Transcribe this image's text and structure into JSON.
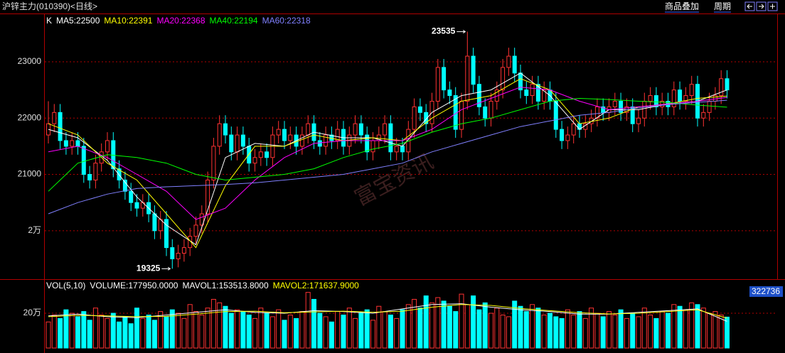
{
  "header": {
    "title": "沪锌主力(010390)<日线>",
    "buttons": [
      "商品叠加",
      "周期"
    ],
    "watermark": "富宝资讯"
  },
  "chart_data": [
    {
      "type": "candlestick",
      "title": "K",
      "up_color": "#ff3232",
      "down_color": "#00ffff",
      "grid": true,
      "ylim": [
        19140,
        23845
      ],
      "yticks": [
        23000,
        22000,
        21000,
        {
          "value": 20000,
          "label": "2万"
        }
      ],
      "open": [
        21700,
        21900,
        22100,
        21600,
        21500,
        21600,
        21500,
        21000,
        20900,
        21200,
        21400,
        21600,
        21100,
        20900,
        20700,
        20500,
        20400,
        20500,
        20300,
        20000,
        20200,
        19700,
        19500,
        19600,
        19700,
        19900,
        20100,
        20300,
        20900,
        21500,
        21900,
        21700,
        21400,
        21700,
        21500,
        21200,
        21300,
        21400,
        21300,
        21700,
        21800,
        21600,
        21700,
        21500,
        21700,
        21900,
        21600,
        21500,
        21700,
        21600,
        21800,
        21500,
        21700,
        21900,
        21700,
        21400,
        21600,
        21700,
        21900,
        21400,
        21500,
        21400,
        21800,
        22200,
        22100,
        21900,
        22300,
        22900,
        22500,
        22400,
        21800,
        22300,
        23100,
        22600,
        22200,
        22000,
        22300,
        22500,
        22900,
        23100,
        22800,
        22500,
        22400,
        22600,
        22300,
        22500,
        22300,
        21800,
        21600,
        21700,
        21900,
        21800,
        21900,
        22000,
        22200,
        22100,
        22200,
        22300,
        22100,
        22200,
        21900,
        22000,
        22300,
        22400,
        22200,
        22300,
        22200,
        22500,
        22300,
        22400,
        22600,
        22000,
        22100,
        22300,
        22400,
        22700
      ],
      "high": [
        22300,
        22250,
        22250,
        21750,
        21750,
        21750,
        21650,
        21150,
        21350,
        21550,
        21750,
        21750,
        21250,
        21050,
        20850,
        20650,
        20650,
        20650,
        20450,
        20350,
        20350,
        19850,
        19750,
        19850,
        20050,
        20250,
        20450,
        21050,
        21650,
        22050,
        22050,
        21850,
        21850,
        21850,
        21650,
        21450,
        21550,
        21550,
        21850,
        21950,
        21950,
        21850,
        21850,
        21850,
        22050,
        22050,
        21750,
        21850,
        21850,
        21950,
        21950,
        21850,
        22050,
        22050,
        21850,
        21750,
        21850,
        22050,
        22050,
        21650,
        21650,
        21950,
        22350,
        22350,
        22250,
        22450,
        23050,
        23050,
        22650,
        22550,
        22450,
        23535,
        23250,
        22750,
        22350,
        22450,
        22650,
        23050,
        23250,
        23250,
        22950,
        22650,
        22750,
        22750,
        22650,
        22650,
        22450,
        21950,
        21850,
        22050,
        22050,
        22050,
        22150,
        22350,
        22350,
        22350,
        22450,
        22450,
        22350,
        22350,
        22150,
        22450,
        22550,
        22550,
        22450,
        22450,
        22650,
        22650,
        22550,
        22750,
        22750,
        22250,
        22450,
        22550,
        22850,
        22850
      ],
      "low": [
        21550,
        21750,
        21450,
        21350,
        21350,
        21350,
        20850,
        20750,
        20750,
        21050,
        21250,
        20950,
        20750,
        20550,
        20350,
        20250,
        20250,
        20150,
        19850,
        19850,
        19550,
        19325,
        19350,
        19450,
        19550,
        19750,
        19950,
        20150,
        20750,
        21350,
        21550,
        21250,
        21250,
        21350,
        21050,
        21050,
        21150,
        21150,
        21150,
        21550,
        21450,
        21450,
        21350,
        21350,
        21550,
        21450,
        21350,
        21350,
        21450,
        21450,
        21350,
        21350,
        21550,
        21550,
        21250,
        21250,
        21450,
        21550,
        21250,
        21250,
        21250,
        21250,
        21650,
        21950,
        21750,
        21750,
        22150,
        22350,
        22250,
        21650,
        21650,
        22150,
        22450,
        22050,
        21850,
        21850,
        22150,
        22350,
        22750,
        22650,
        22350,
        22250,
        22250,
        22150,
        22150,
        22150,
        21650,
        21450,
        21450,
        21550,
        21650,
        21650,
        21750,
        21850,
        21950,
        21950,
        22050,
        21950,
        21950,
        21750,
        21750,
        21850,
        22150,
        22050,
        22050,
        22050,
        22050,
        22150,
        22150,
        22250,
        21850,
        21850,
        21950,
        22150,
        22250,
        22350
      ],
      "close": [
        21900,
        22100,
        21600,
        21500,
        21600,
        21500,
        21000,
        20900,
        21200,
        21400,
        21600,
        21100,
        20900,
        20700,
        20500,
        20400,
        20500,
        20300,
        20000,
        20200,
        19700,
        19500,
        19600,
        19700,
        19900,
        20100,
        20300,
        20900,
        21500,
        21900,
        21700,
        21400,
        21700,
        21500,
        21200,
        21300,
        21400,
        21300,
        21700,
        21800,
        21600,
        21700,
        21500,
        21700,
        21900,
        21600,
        21500,
        21700,
        21600,
        21800,
        21500,
        21700,
        21900,
        21700,
        21400,
        21600,
        21700,
        21900,
        21400,
        21500,
        21400,
        21800,
        22200,
        22100,
        21900,
        22300,
        22900,
        22500,
        22400,
        21800,
        22300,
        23100,
        22600,
        22200,
        22000,
        22300,
        22500,
        22900,
        23100,
        22800,
        22500,
        22400,
        22600,
        22300,
        22500,
        22300,
        21800,
        21600,
        21700,
        21900,
        21800,
        21900,
        22000,
        22200,
        22100,
        22200,
        22300,
        22100,
        22200,
        21900,
        22000,
        22300,
        22400,
        22200,
        22300,
        22200,
        22500,
        22300,
        22400,
        22600,
        22000,
        22100,
        22300,
        22400,
        22700,
        22500
      ],
      "annotations": [
        {
          "index": 71,
          "field": "high"
        },
        {
          "index": 21,
          "field": "low"
        }
      ],
      "series": [
        {
          "name": "MA5:22500",
          "color": "#ffffff",
          "x": [
            0,
            5,
            10,
            15,
            20,
            25,
            30,
            35,
            40,
            45,
            50,
            55,
            60,
            65,
            70,
            75,
            80,
            85,
            90,
            95,
            100,
            105,
            110,
            115
          ],
          "values": [
            21800,
            21650,
            21250,
            20600,
            20100,
            19750,
            21300,
            21550,
            21500,
            21750,
            21650,
            21650,
            21500,
            22100,
            22400,
            22500,
            22800,
            22400,
            21800,
            22150,
            22150,
            22250,
            22300,
            22500
          ]
        },
        {
          "name": "MA10:22391",
          "color": "#ffff00",
          "x": [
            0,
            5,
            10,
            15,
            20,
            25,
            30,
            35,
            40,
            45,
            50,
            55,
            60,
            65,
            70,
            75,
            80,
            85,
            90,
            95,
            100,
            105,
            110,
            115
          ],
          "values": [
            21900,
            21700,
            21200,
            20900,
            20300,
            19700,
            20800,
            21500,
            21500,
            21700,
            21600,
            21650,
            21600,
            22000,
            22300,
            22400,
            22700,
            22500,
            21900,
            22000,
            22200,
            22250,
            22350,
            22391
          ]
        },
        {
          "name": "MA20:22368",
          "color": "#ff00ff",
          "x": [
            0,
            5,
            10,
            15,
            20,
            25,
            30,
            35,
            40,
            45,
            50,
            55,
            60,
            65,
            70,
            75,
            80,
            85,
            90,
            95,
            100,
            105,
            110,
            115
          ],
          "values": [
            21400,
            21500,
            21300,
            21000,
            20700,
            20200,
            20400,
            20900,
            21300,
            21550,
            21600,
            21600,
            21600,
            21800,
            22150,
            22350,
            22550,
            22500,
            22300,
            22150,
            22200,
            22250,
            22300,
            22368
          ]
        },
        {
          "name": "MA40:22194",
          "color": "#00ff00",
          "x": [
            0,
            5,
            10,
            15,
            20,
            25,
            30,
            35,
            40,
            45,
            50,
            55,
            60,
            65,
            70,
            75,
            80,
            85,
            90,
            95,
            100,
            105,
            110,
            115
          ],
          "values": [
            20700,
            21200,
            21350,
            21300,
            21200,
            21000,
            20900,
            20950,
            21000,
            21100,
            21300,
            21450,
            21550,
            21750,
            21900,
            22000,
            22150,
            22300,
            22350,
            22330,
            22300,
            22280,
            22230,
            22194
          ]
        },
        {
          "name": "MA60:22318",
          "color": "#8080ff",
          "x": [
            0,
            5,
            10,
            15,
            20,
            25,
            30,
            35,
            40,
            45,
            50,
            55,
            60,
            65,
            70,
            75,
            80,
            85,
            90,
            95,
            100,
            105,
            110,
            115
          ],
          "values": [
            20300,
            20500,
            20650,
            20750,
            20780,
            20800,
            20820,
            20850,
            20900,
            20950,
            21000,
            21100,
            21200,
            21400,
            21550,
            21700,
            21850,
            21950,
            22050,
            22100,
            22180,
            22240,
            22280,
            22318
          ]
        }
      ]
    },
    {
      "type": "bar",
      "title": "VOL(5,10)",
      "ylim": [
        0,
        388000
      ],
      "yticks": [
        {
          "value": 200000,
          "label": "20万"
        },
        322736
      ],
      "series": [
        {
          "name": "VOLUME:177950.0000",
          "color": "#ffffff",
          "values": [
            150000,
            190000,
            170000,
            220000,
            200000,
            180000,
            210000,
            160000,
            230000,
            190000,
            170000,
            200000,
            150000,
            180000,
            140000,
            230000,
            170000,
            190000,
            160000,
            210000,
            180000,
            220000,
            200000,
            170000,
            250000,
            210000,
            190000,
            230000,
            280000,
            260000,
            240000,
            200000,
            220000,
            210000,
            190000,
            170000,
            230000,
            200000,
            180000,
            220000,
            160000,
            190000,
            170000,
            210000,
            320000,
            280000,
            200000,
            180000,
            150000,
            210000,
            190000,
            230000,
            170000,
            200000,
            220000,
            160000,
            240000,
            210000,
            190000,
            170000,
            220000,
            250000,
            280000,
            230000,
            300000,
            260000,
            290000,
            270000,
            240000,
            210000,
            310000,
            250000,
            300000,
            220000,
            260000,
            200000,
            230000,
            190000,
            180000,
            270000,
            240000,
            210000,
            250000,
            230000,
            190000,
            200000,
            180000,
            170000,
            220000,
            190000,
            210000,
            170000,
            230000,
            200000,
            180000,
            210000,
            190000,
            220000,
            170000,
            200000,
            180000,
            230000,
            190000,
            170000,
            210000,
            200000,
            250000,
            240000,
            220000,
            260000,
            250000,
            230000,
            200000,
            210000,
            190000,
            177950
          ]
        },
        {
          "name": "MAVOL1:153513.8000",
          "color": "#ffffff",
          "x": [
            0,
            5,
            10,
            15,
            20,
            25,
            30,
            35,
            40,
            45,
            50,
            55,
            60,
            65,
            70,
            75,
            80,
            85,
            90,
            95,
            100,
            105,
            110,
            115
          ],
          "values": [
            185000,
            195000,
            180000,
            175000,
            190000,
            205000,
            220000,
            205000,
            200000,
            215000,
            210000,
            200000,
            225000,
            250000,
            255000,
            235000,
            220000,
            210000,
            195000,
            195000,
            205000,
            215000,
            225000,
            153514
          ]
        },
        {
          "name": "MAVOL2:171637.9000",
          "color": "#ffff00",
          "x": [
            0,
            5,
            10,
            15,
            20,
            25,
            30,
            35,
            40,
            45,
            50,
            55,
            60,
            65,
            70,
            75,
            80,
            85,
            90,
            95,
            100,
            105,
            110,
            115
          ],
          "values": [
            180000,
            188000,
            185000,
            180000,
            182000,
            195000,
            210000,
            212000,
            203000,
            208000,
            212000,
            206000,
            212000,
            235000,
            250000,
            245000,
            228000,
            215000,
            203000,
            196000,
            200000,
            210000,
            220000,
            171638
          ]
        }
      ]
    }
  ]
}
